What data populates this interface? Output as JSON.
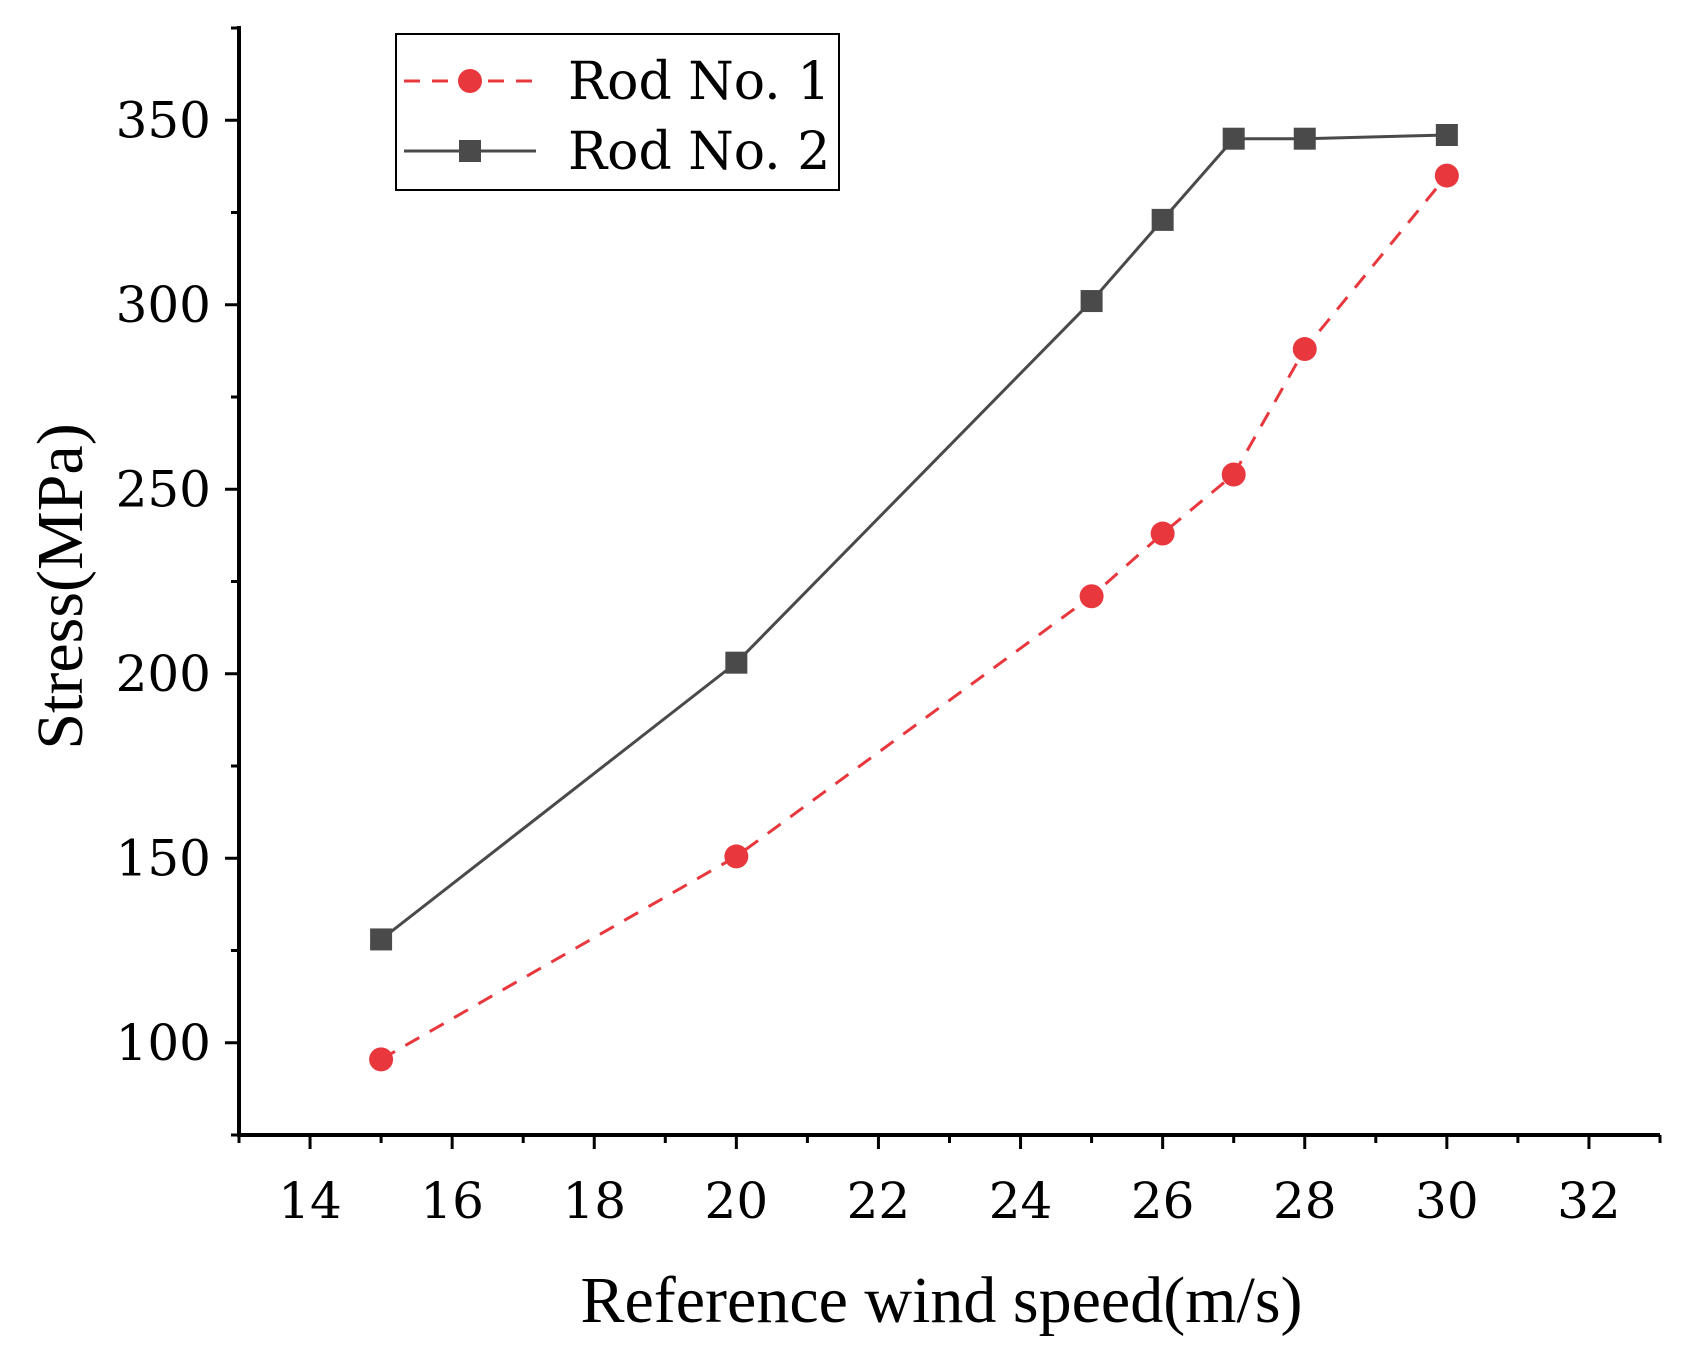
{
  "chart_data": {
    "type": "line",
    "title": "",
    "xlabel": "Reference wind speed(m/s)",
    "ylabel": "Stress(MPa)",
    "xlim": [
      13,
      33
    ],
    "ylim": [
      75,
      375
    ],
    "xticks": [
      14,
      16,
      18,
      20,
      22,
      24,
      26,
      28,
      30,
      32
    ],
    "yticks": [
      100,
      150,
      200,
      250,
      300,
      350
    ],
    "x_tick_labels": [
      "14",
      "16",
      "18",
      "20",
      "22",
      "24",
      "26",
      "28",
      "30",
      "32"
    ],
    "y_tick_labels": [
      "100",
      "150",
      "200",
      "250",
      "300",
      "350"
    ],
    "grid": false,
    "legend_position": "top-left",
    "series": [
      {
        "name": "Rod No. 1",
        "color": "#e8383d",
        "line_style": "dashed",
        "marker": "circle",
        "x": [
          15,
          20,
          25,
          26,
          27,
          28,
          30
        ],
        "values": [
          95.5,
          150.5,
          221,
          238,
          254,
          288,
          335
        ]
      },
      {
        "name": "Rod No. 2",
        "color": "#4a4a4a",
        "line_style": "solid",
        "marker": "square",
        "x": [
          15,
          20,
          25,
          26,
          27,
          28,
          30
        ],
        "values": [
          128,
          203,
          301,
          323,
          345,
          345,
          346
        ]
      }
    ]
  }
}
